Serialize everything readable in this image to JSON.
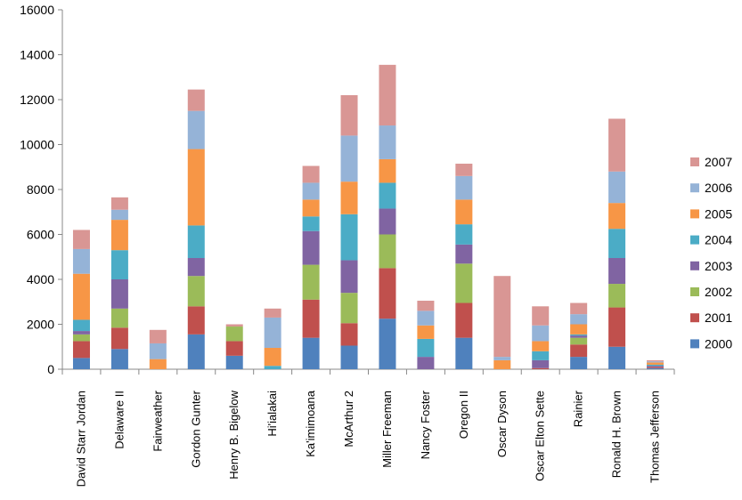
{
  "chart_data": {
    "type": "bar",
    "stacked": true,
    "title": "",
    "xlabel": "",
    "ylabel": "",
    "ylim": [
      0,
      16000
    ],
    "yticks": [
      0,
      2000,
      4000,
      6000,
      8000,
      10000,
      12000,
      14000,
      16000
    ],
    "grid": false,
    "legend_position": "right",
    "categories": [
      "David Starr Jordan",
      "Delaware II",
      "Fairweather",
      "Gordon Gunter",
      "Henry B. Bigelow",
      "Hi'ialakai",
      "Ka'imimoana",
      "McArthur 2",
      "Miller Freeman",
      "Nancy Foster",
      "Oregon II",
      "Oscar Dyson",
      "Oscar Elton Sette",
      "Rainier",
      "Ronald H. Brown",
      "Thomas Jefferson"
    ],
    "series": [
      {
        "name": "2000",
        "color": "#4f81bd",
        "values": [
          500,
          900,
          0,
          1550,
          600,
          0,
          1400,
          1050,
          2250,
          0,
          1400,
          0,
          0,
          550,
          1000,
          50
        ]
      },
      {
        "name": "2001",
        "color": "#c0504d",
        "values": [
          750,
          950,
          0,
          1250,
          650,
          0,
          1700,
          1000,
          2250,
          0,
          1550,
          0,
          50,
          550,
          1750,
          50
        ]
      },
      {
        "name": "2002",
        "color": "#9bbb59",
        "values": [
          300,
          850,
          0,
          1350,
          650,
          0,
          1550,
          1350,
          1500,
          0,
          1750,
          0,
          0,
          300,
          1050,
          0
        ]
      },
      {
        "name": "2003",
        "color": "#8064a2",
        "values": [
          150,
          1300,
          0,
          800,
          0,
          0,
          1500,
          1450,
          1150,
          550,
          850,
          0,
          350,
          100,
          1150,
          50
        ]
      },
      {
        "name": "2004",
        "color": "#4bacc6",
        "values": [
          500,
          1300,
          0,
          1450,
          0,
          150,
          650,
          2050,
          1150,
          800,
          900,
          0,
          400,
          50,
          1300,
          50
        ]
      },
      {
        "name": "2005",
        "color": "#f79646",
        "values": [
          2050,
          1350,
          450,
          3400,
          0,
          800,
          750,
          1450,
          1050,
          600,
          1100,
          400,
          450,
          450,
          1150,
          100
        ]
      },
      {
        "name": "2006",
        "color": "#95b3d7",
        "values": [
          1100,
          450,
          700,
          1700,
          0,
          1350,
          750,
          2050,
          1500,
          650,
          1050,
          150,
          700,
          450,
          1400,
          50
        ]
      },
      {
        "name": "2007",
        "color": "#d99694",
        "values": [
          850,
          550,
          600,
          950,
          100,
          400,
          750,
          1800,
          2700,
          450,
          550,
          3600,
          850,
          500,
          2350,
          50
        ]
      }
    ]
  }
}
